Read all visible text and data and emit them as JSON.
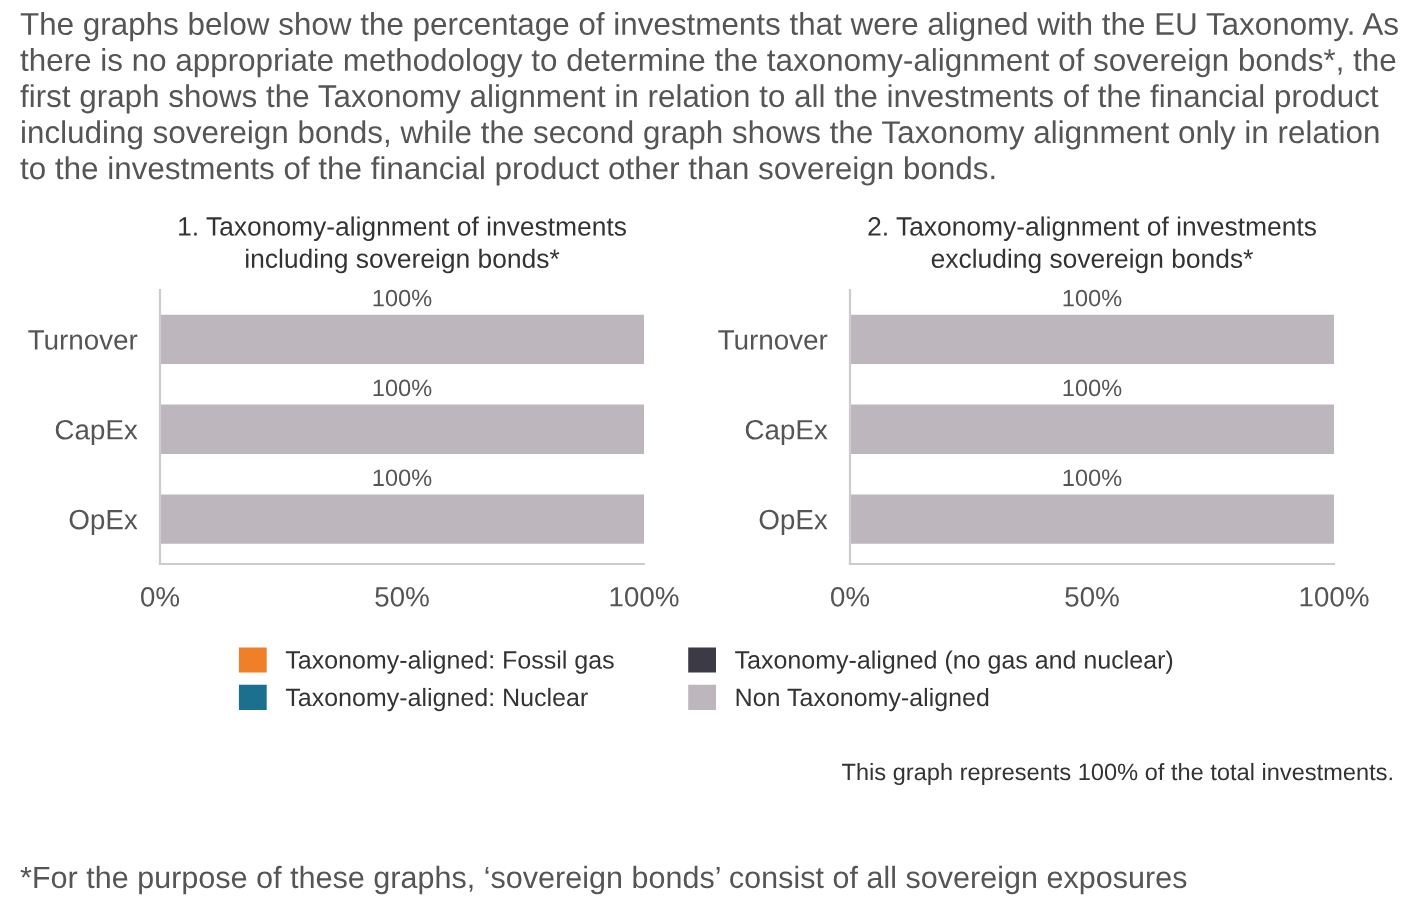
{
  "chart_data": [
    {
      "type": "bar",
      "orientation": "horizontal",
      "stacked": true,
      "title": "1. Taxonomy-alignment of investments\nincluding sovereign bonds*",
      "categories": [
        "Turnover",
        "CapEx",
        "OpEx"
      ],
      "series": [
        {
          "name": "Taxonomy-aligned: Fossil gas",
          "color": "#f07f2a",
          "values": [
            0,
            0,
            0
          ]
        },
        {
          "name": "Taxonomy-aligned: Nuclear",
          "color": "#1b6f8f",
          "values": [
            0,
            0,
            0
          ]
        },
        {
          "name": "Taxonomy-aligned (no gas and nuclear)",
          "color": "#3b3a45",
          "values": [
            0,
            0,
            0
          ]
        },
        {
          "name": "Non Taxonomy-aligned",
          "color": "#bdb7bd",
          "values": [
            100,
            100,
            100
          ],
          "value_labels": [
            "100%",
            "100%",
            "100%"
          ]
        }
      ],
      "xlim": [
        0,
        100
      ],
      "xticks": [
        {
          "value": 0,
          "label": "0%"
        },
        {
          "value": 50,
          "label": "50%"
        },
        {
          "value": 100,
          "label": "100%"
        }
      ],
      "grid": false,
      "legend": "bottom",
      "annotations": [
        "The graphs below show the percentage of investments that were aligned with the EU Taxonomy. As there is no appropriate methodology to determine the taxonomy-alignment of sovereign bonds*, the first graph shows the Taxonomy alignment in relation to all the investments of the financial product including sovereign bonds, while the second graph shows the Taxonomy alignment only in relation to the investments of the financial product other than sovereign bonds."
      ]
    },
    {
      "type": "bar",
      "orientation": "horizontal",
      "stacked": true,
      "title": "2. Taxonomy-alignment of investments\nexcluding sovereign bonds*",
      "categories": [
        "Turnover",
        "CapEx",
        "OpEx"
      ],
      "series": [
        {
          "color": "#f07f2a",
          "values": [
            0,
            0,
            0
          ]
        },
        {
          "color": "#1b6f8f",
          "values": [
            0,
            0,
            0
          ]
        },
        {
          "color": "#3b3a45",
          "values": [
            0,
            0,
            0
          ]
        },
        {
          "color": "#bdb7bd",
          "values": [
            100,
            100,
            100
          ],
          "value_labels": [
            "100%",
            "100%",
            "100%"
          ]
        }
      ],
      "xlim": [
        0,
        100
      ],
      "xticks": [
        {
          "value": 0,
          "label": "0%"
        },
        {
          "value": 50,
          "label": "50%"
        },
        {
          "value": 100,
          "label": "100%"
        }
      ],
      "grid": false,
      "annotations": [
        "This graph represents 100% of the total investments.",
        "*For the purpose of these graphs, ‘sovereign bonds’ consist of all sovereign exposures"
      ]
    }
  ]
}
